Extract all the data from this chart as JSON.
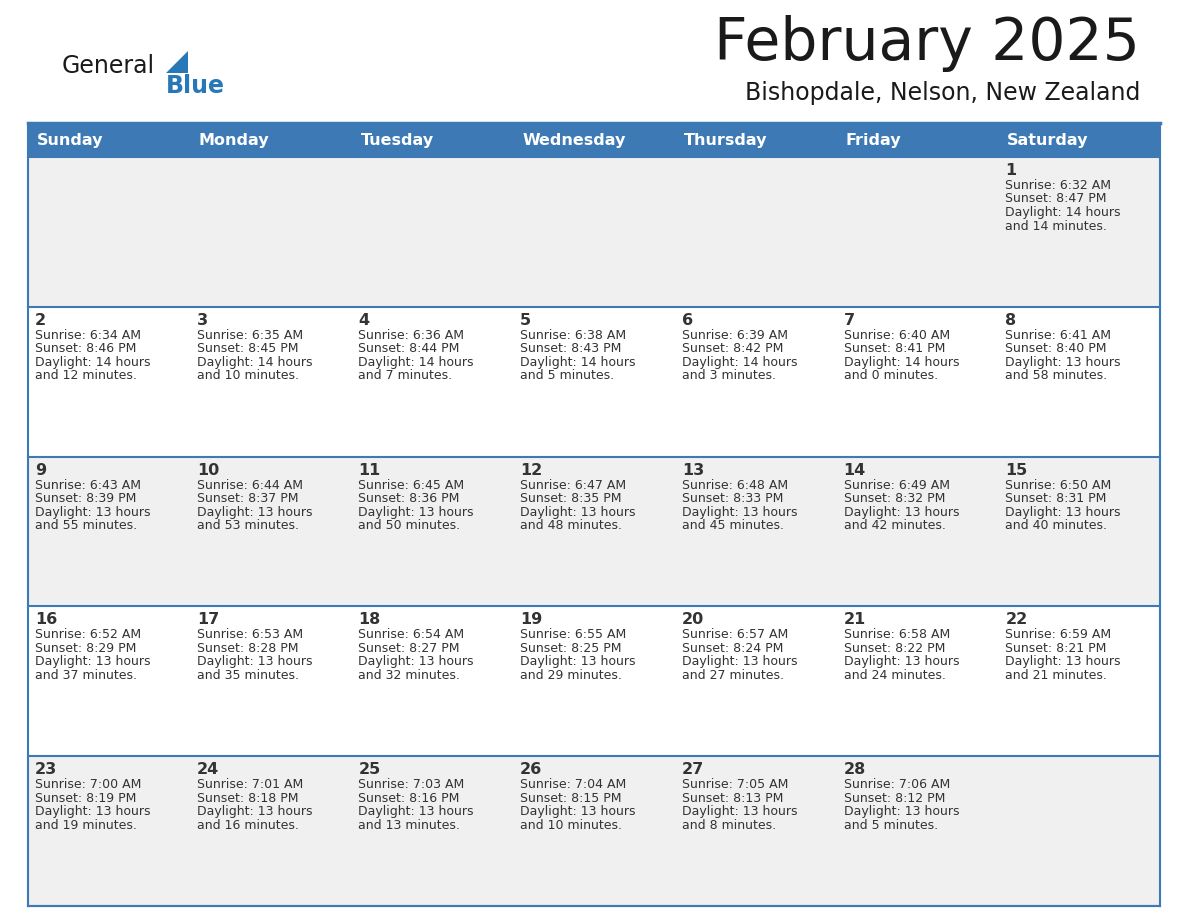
{
  "title": "February 2025",
  "subtitle": "Bishopdale, Nelson, New Zealand",
  "header_bg_color": "#3d7ab5",
  "header_text_color": "#ffffff",
  "days_of_week": [
    "Sunday",
    "Monday",
    "Tuesday",
    "Wednesday",
    "Thursday",
    "Friday",
    "Saturday"
  ],
  "cell_bg_even": "#f0f0f0",
  "cell_bg_odd": "#ffffff",
  "cell_border_color": "#3d7ab5",
  "day_text_color": "#333333",
  "info_text_color": "#333333",
  "title_color": "#1a1a1a",
  "subtitle_color": "#1a1a1a",
  "logo_general_color": "#1a1a1a",
  "logo_blue_color": "#2878b8",
  "calendar_data": [
    [
      null,
      null,
      null,
      null,
      null,
      null,
      {
        "day": 1,
        "sunrise": "6:32 AM",
        "sunset": "8:47 PM",
        "daylight": "14 hours",
        "daylight2": "and 14 minutes."
      }
    ],
    [
      {
        "day": 2,
        "sunrise": "6:34 AM",
        "sunset": "8:46 PM",
        "daylight": "14 hours",
        "daylight2": "and 12 minutes."
      },
      {
        "day": 3,
        "sunrise": "6:35 AM",
        "sunset": "8:45 PM",
        "daylight": "14 hours",
        "daylight2": "and 10 minutes."
      },
      {
        "day": 4,
        "sunrise": "6:36 AM",
        "sunset": "8:44 PM",
        "daylight": "14 hours",
        "daylight2": "and 7 minutes."
      },
      {
        "day": 5,
        "sunrise": "6:38 AM",
        "sunset": "8:43 PM",
        "daylight": "14 hours",
        "daylight2": "and 5 minutes."
      },
      {
        "day": 6,
        "sunrise": "6:39 AM",
        "sunset": "8:42 PM",
        "daylight": "14 hours",
        "daylight2": "and 3 minutes."
      },
      {
        "day": 7,
        "sunrise": "6:40 AM",
        "sunset": "8:41 PM",
        "daylight": "14 hours",
        "daylight2": "and 0 minutes."
      },
      {
        "day": 8,
        "sunrise": "6:41 AM",
        "sunset": "8:40 PM",
        "daylight": "13 hours",
        "daylight2": "and 58 minutes."
      }
    ],
    [
      {
        "day": 9,
        "sunrise": "6:43 AM",
        "sunset": "8:39 PM",
        "daylight": "13 hours",
        "daylight2": "and 55 minutes."
      },
      {
        "day": 10,
        "sunrise": "6:44 AM",
        "sunset": "8:37 PM",
        "daylight": "13 hours",
        "daylight2": "and 53 minutes."
      },
      {
        "day": 11,
        "sunrise": "6:45 AM",
        "sunset": "8:36 PM",
        "daylight": "13 hours",
        "daylight2": "and 50 minutes."
      },
      {
        "day": 12,
        "sunrise": "6:47 AM",
        "sunset": "8:35 PM",
        "daylight": "13 hours",
        "daylight2": "and 48 minutes."
      },
      {
        "day": 13,
        "sunrise": "6:48 AM",
        "sunset": "8:33 PM",
        "daylight": "13 hours",
        "daylight2": "and 45 minutes."
      },
      {
        "day": 14,
        "sunrise": "6:49 AM",
        "sunset": "8:32 PM",
        "daylight": "13 hours",
        "daylight2": "and 42 minutes."
      },
      {
        "day": 15,
        "sunrise": "6:50 AM",
        "sunset": "8:31 PM",
        "daylight": "13 hours",
        "daylight2": "and 40 minutes."
      }
    ],
    [
      {
        "day": 16,
        "sunrise": "6:52 AM",
        "sunset": "8:29 PM",
        "daylight": "13 hours",
        "daylight2": "and 37 minutes."
      },
      {
        "day": 17,
        "sunrise": "6:53 AM",
        "sunset": "8:28 PM",
        "daylight": "13 hours",
        "daylight2": "and 35 minutes."
      },
      {
        "day": 18,
        "sunrise": "6:54 AM",
        "sunset": "8:27 PM",
        "daylight": "13 hours",
        "daylight2": "and 32 minutes."
      },
      {
        "day": 19,
        "sunrise": "6:55 AM",
        "sunset": "8:25 PM",
        "daylight": "13 hours",
        "daylight2": "and 29 minutes."
      },
      {
        "day": 20,
        "sunrise": "6:57 AM",
        "sunset": "8:24 PM",
        "daylight": "13 hours",
        "daylight2": "and 27 minutes."
      },
      {
        "day": 21,
        "sunrise": "6:58 AM",
        "sunset": "8:22 PM",
        "daylight": "13 hours",
        "daylight2": "and 24 minutes."
      },
      {
        "day": 22,
        "sunrise": "6:59 AM",
        "sunset": "8:21 PM",
        "daylight": "13 hours",
        "daylight2": "and 21 minutes."
      }
    ],
    [
      {
        "day": 23,
        "sunrise": "7:00 AM",
        "sunset": "8:19 PM",
        "daylight": "13 hours",
        "daylight2": "and 19 minutes."
      },
      {
        "day": 24,
        "sunrise": "7:01 AM",
        "sunset": "8:18 PM",
        "daylight": "13 hours",
        "daylight2": "and 16 minutes."
      },
      {
        "day": 25,
        "sunrise": "7:03 AM",
        "sunset": "8:16 PM",
        "daylight": "13 hours",
        "daylight2": "and 13 minutes."
      },
      {
        "day": 26,
        "sunrise": "7:04 AM",
        "sunset": "8:15 PM",
        "daylight": "13 hours",
        "daylight2": "and 10 minutes."
      },
      {
        "day": 27,
        "sunrise": "7:05 AM",
        "sunset": "8:13 PM",
        "daylight": "13 hours",
        "daylight2": "and 8 minutes."
      },
      {
        "day": 28,
        "sunrise": "7:06 AM",
        "sunset": "8:12 PM",
        "daylight": "13 hours",
        "daylight2": "and 5 minutes."
      },
      null
    ]
  ]
}
